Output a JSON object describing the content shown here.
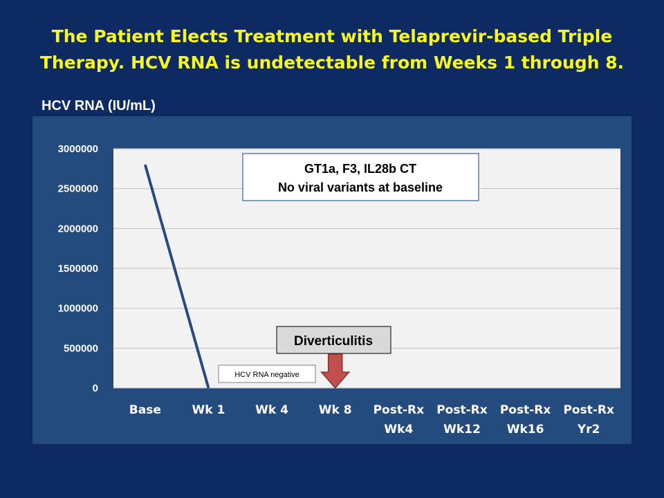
{
  "title_line1": "The Patient Elects Treatment with Telaprevir-based Triple",
  "title_line2": "Therapy.  HCV RNA is undetectable from Weeks 1 through 8.",
  "y_caption": "HCV RNA (IU/mL)",
  "colors": {
    "background": "#0e2a63",
    "title": "#f7f724",
    "panel": "#244b7e",
    "plot_area": "#f2f2f2",
    "series_line": "#2a4a7f",
    "arrow": "#c0504d"
  },
  "annotations": {
    "genotype_line1": "GT1a, F3, IL28b CT",
    "genotype_line2": "No viral variants at baseline",
    "event_label": "Diverticulitis",
    "negative_label": "HCV RNA negative"
  },
  "chart_data": {
    "type": "line",
    "categories_lines": [
      [
        "Base"
      ],
      [
        "Wk 1"
      ],
      [
        "Wk 4"
      ],
      [
        "Wk 8"
      ],
      [
        "Post-Rx",
        "Wk4"
      ],
      [
        "Post-Rx",
        "Wk12"
      ],
      [
        "Post-Rx",
        "Wk16"
      ],
      [
        "Post-Rx",
        "Yr2"
      ]
    ],
    "series": [
      {
        "values": [
          2800000,
          0,
          null,
          null,
          null,
          null,
          null,
          null
        ]
      }
    ],
    "ylim": [
      0,
      3000000
    ],
    "yticks": [
      "0",
      "500000",
      "1000000",
      "1500000",
      "2000000",
      "2500000",
      "3000000"
    ],
    "grid": true,
    "event_arrow_category": 3
  }
}
